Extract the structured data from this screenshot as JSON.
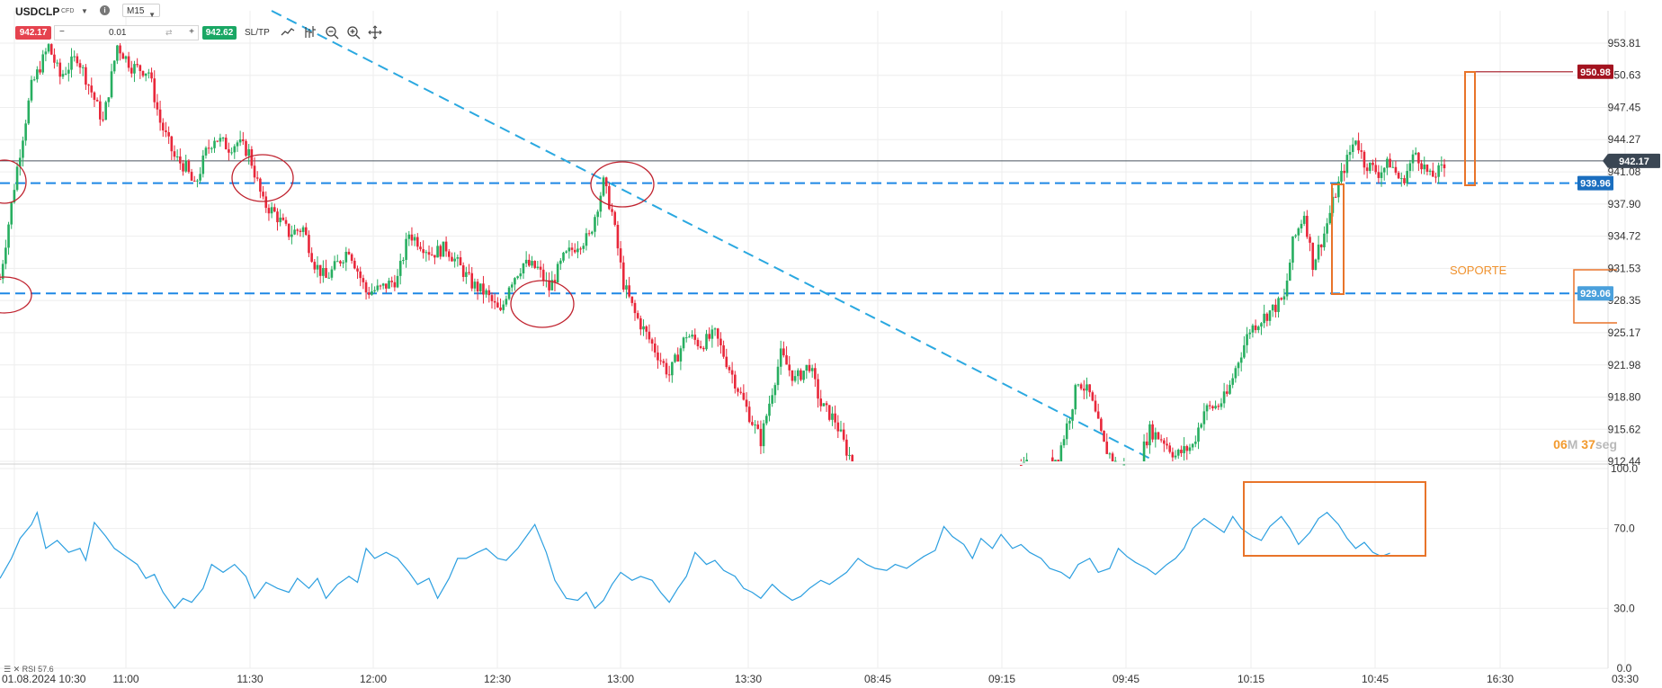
{
  "header": {
    "symbol": "USDCLP",
    "instrument_type": "CFD",
    "info_icon": "i",
    "timeframe": "M15",
    "sell_price": "942.17",
    "buy_price": "942.62",
    "quantity": "0.01",
    "minus": "−",
    "plus": "+",
    "swap_icon": "swap-icon",
    "sltp_label": "SL/TP",
    "tools": [
      "line-chart-icon",
      "indicators-icon",
      "zoom-out-icon",
      "zoom-in-icon",
      "crosshair-icon"
    ]
  },
  "indicator": {
    "rsi_label": "RSI 57.6"
  },
  "annotations": {
    "soporte_label": "SOPORTE",
    "countdown_minutes": "06",
    "countdown_minutes_unit": "M",
    "countdown_seconds": "37",
    "countdown_seconds_unit": "seg"
  },
  "colors": {
    "bull": "#27ae60",
    "bear": "#e8273a",
    "level": "#1e88e5",
    "trend": "#2aa8e0",
    "annotation_orange": "#e8742a",
    "circle_red": "#c0232f",
    "rsi": "#2c9fe0",
    "price_tag": "#3a4653",
    "target_tag": "#a3131f",
    "level_tag_dark": "#1a6ebf",
    "level_tag_light": "#4aa0dc"
  },
  "chart_data": {
    "type": "candlestick",
    "symbol": "USDCLP",
    "timeframe": "M15",
    "x_tick_labels": [
      "01.08.2024 10:30",
      "11:00",
      "11:30",
      "12:00",
      "12:30",
      "13:00",
      "13:30",
      "08:45",
      "09:15",
      "09:45",
      "10:15",
      "10:45",
      "16:30",
      "03:30"
    ],
    "y_tick_labels": [
      "953.81",
      "950.63",
      "947.45",
      "944.27",
      "941.08",
      "937.90",
      "934.72",
      "931.53",
      "928.35",
      "925.17",
      "921.98",
      "918.80",
      "915.62",
      "912.44"
    ],
    "ylim": [
      912.44,
      953.81
    ],
    "current_price": 942.17,
    "price_tags": [
      {
        "label": "942.17",
        "value": 942.17,
        "kind": "current"
      },
      {
        "label": "950.98",
        "value": 950.98,
        "kind": "target"
      },
      {
        "label": "939.96",
        "value": 939.96,
        "kind": "level"
      },
      {
        "label": "929.06",
        "value": 929.06,
        "kind": "support"
      }
    ],
    "horizontal_levels": [
      939.96,
      929.06
    ],
    "trendline": {
      "from": {
        "x_label": "11:30",
        "y": 958.2
      },
      "to": {
        "x_label": "09:45",
        "y": 912.0
      }
    },
    "price_path": [
      [
        0,
        930.5
      ],
      [
        6,
        941.5
      ],
      [
        11,
        949.5
      ],
      [
        17,
        953.5
      ],
      [
        21,
        950.5
      ],
      [
        27,
        952.5
      ],
      [
        32,
        949.0
      ],
      [
        36,
        946.0
      ],
      [
        41,
        953.6
      ],
      [
        46,
        951.5
      ],
      [
        52,
        951.0
      ],
      [
        56,
        946.0
      ],
      [
        61,
        942.5
      ],
      [
        65,
        941.5
      ],
      [
        68,
        939.5
      ],
      [
        72,
        943.0
      ],
      [
        75,
        944.5
      ],
      [
        80,
        943.5
      ],
      [
        83,
        944.0
      ],
      [
        87,
        943.0
      ],
      [
        92,
        938.0
      ],
      [
        96,
        937.0
      ],
      [
        101,
        935.0
      ],
      [
        106,
        935.5
      ],
      [
        110,
        932.0
      ],
      [
        114,
        930.5
      ],
      [
        118,
        932.0
      ],
      [
        122,
        933.5
      ],
      [
        128,
        929.2
      ],
      [
        133,
        929.5
      ],
      [
        139,
        930.5
      ],
      [
        143,
        935.0
      ],
      [
        147,
        934.0
      ],
      [
        151,
        933.0
      ],
      [
        156,
        933.6
      ],
      [
        160,
        932.0
      ],
      [
        165,
        930.0
      ],
      [
        170,
        929.0
      ],
      [
        175,
        927.0
      ],
      [
        178,
        930.0
      ],
      [
        183,
        932.0
      ],
      [
        188,
        931.5
      ],
      [
        192,
        929.5
      ],
      [
        197,
        932.5
      ],
      [
        202,
        934.0
      ],
      [
        206,
        934.6
      ],
      [
        211,
        940.0
      ],
      [
        214,
        937.0
      ],
      [
        218,
        930.0
      ],
      [
        222,
        927.0
      ],
      [
        228,
        924.0
      ],
      [
        234,
        921.0
      ],
      [
        240,
        925.0
      ],
      [
        245,
        924.0
      ],
      [
        250,
        925.0
      ],
      [
        256,
        921.0
      ],
      [
        262,
        917.0
      ],
      [
        266,
        914.5
      ],
      [
        270,
        919.5
      ],
      [
        273,
        923.0
      ],
      [
        278,
        920.5
      ],
      [
        283,
        922.0
      ],
      [
        287,
        918.0
      ],
      [
        292,
        916.5
      ],
      [
        296,
        913.5
      ],
      [
        300,
        911.5
      ],
      [
        306,
        911.0
      ],
      [
        312,
        911.0
      ],
      [
        318,
        911.0
      ],
      [
        324,
        911.0
      ],
      [
        330,
        911.0
      ],
      [
        336,
        911.0
      ],
      [
        342,
        911.0
      ],
      [
        348,
        911.0
      ],
      [
        354,
        911.0
      ],
      [
        359,
        912.0
      ],
      [
        364,
        911.5
      ],
      [
        370,
        913.0
      ],
      [
        374,
        917.0
      ],
      [
        377,
        920.5
      ],
      [
        381,
        919.0
      ],
      [
        386,
        914.0
      ],
      [
        390,
        912.2
      ],
      [
        397,
        911.5
      ],
      [
        402,
        915.5
      ],
      [
        407,
        914.5
      ],
      [
        411,
        913.0
      ],
      [
        417,
        914.0
      ],
      [
        421,
        917.5
      ],
      [
        426,
        918.0
      ],
      [
        429,
        919.0
      ],
      [
        433,
        922.5
      ],
      [
        437,
        925.5
      ],
      [
        441,
        926.5
      ],
      [
        445,
        927.5
      ],
      [
        449,
        928.5
      ],
      [
        452,
        934.0
      ],
      [
        456,
        937.0
      ],
      [
        459,
        932.0
      ],
      [
        463,
        935.0
      ],
      [
        467,
        939.0
      ],
      [
        470,
        941.5
      ],
      [
        474,
        944.5
      ],
      [
        477,
        942.0
      ],
      [
        482,
        941.0
      ],
      [
        486,
        942.0
      ],
      [
        490,
        940.0
      ],
      [
        495,
        943.0
      ],
      [
        500,
        940.5
      ],
      [
        505,
        941.5
      ]
    ],
    "rsi": {
      "label": "RSI 57.6",
      "value": 57.6,
      "ylim": [
        0,
        100
      ],
      "y_tick_labels": [
        "100.0",
        "70.0",
        "30.0",
        "0.0"
      ],
      "path": [
        [
          0,
          45
        ],
        [
          4,
          55
        ],
        [
          7,
          65
        ],
        [
          11,
          72
        ],
        [
          13,
          78
        ],
        [
          16,
          60
        ],
        [
          20,
          64
        ],
        [
          24,
          58
        ],
        [
          28,
          60
        ],
        [
          30,
          54
        ],
        [
          33,
          73
        ],
        [
          37,
          66
        ],
        [
          40,
          60
        ],
        [
          44,
          56
        ],
        [
          48,
          52
        ],
        [
          51,
          45
        ],
        [
          54,
          47
        ],
        [
          57,
          38
        ],
        [
          61,
          30
        ],
        [
          64,
          35
        ],
        [
          67,
          33
        ],
        [
          71,
          40
        ],
        [
          74,
          52
        ],
        [
          78,
          48
        ],
        [
          82,
          52
        ],
        [
          86,
          46
        ],
        [
          89,
          35
        ],
        [
          93,
          43
        ],
        [
          97,
          40
        ],
        [
          101,
          38
        ],
        [
          104,
          45
        ],
        [
          108,
          40
        ],
        [
          111,
          45
        ],
        [
          114,
          35
        ],
        [
          118,
          42
        ],
        [
          122,
          46
        ],
        [
          125,
          43
        ],
        [
          128,
          60
        ],
        [
          131,
          55
        ],
        [
          135,
          58
        ],
        [
          139,
          55
        ],
        [
          143,
          48
        ],
        [
          146,
          42
        ],
        [
          150,
          45
        ],
        [
          153,
          35
        ],
        [
          157,
          45
        ],
        [
          160,
          55
        ],
        [
          163,
          55
        ],
        [
          167,
          58
        ],
        [
          170,
          60
        ],
        [
          174,
          55
        ],
        [
          177,
          54
        ],
        [
          181,
          60
        ],
        [
          184,
          66
        ],
        [
          187,
          72
        ],
        [
          191,
          58
        ],
        [
          194,
          44
        ],
        [
          198,
          35
        ],
        [
          202,
          34
        ],
        [
          205,
          38
        ],
        [
          208,
          30
        ],
        [
          211,
          34
        ],
        [
          214,
          42
        ],
        [
          217,
          48
        ],
        [
          221,
          44
        ],
        [
          224,
          46
        ],
        [
          228,
          44
        ],
        [
          231,
          38
        ],
        [
          234,
          33
        ],
        [
          237,
          40
        ],
        [
          240,
          46
        ],
        [
          243,
          58
        ],
        [
          247,
          52
        ],
        [
          250,
          54
        ],
        [
          253,
          49
        ],
        [
          257,
          46
        ],
        [
          260,
          40
        ],
        [
          263,
          38
        ],
        [
          266,
          35
        ],
        [
          270,
          42
        ],
        [
          273,
          38
        ],
        [
          277,
          34
        ],
        [
          280,
          36
        ],
        [
          283,
          40
        ],
        [
          287,
          44
        ],
        [
          290,
          42
        ],
        [
          293,
          45
        ],
        [
          296,
          48
        ],
        [
          300,
          55
        ],
        [
          303,
          52
        ],
        [
          306,
          50
        ],
        [
          310,
          49
        ],
        [
          313,
          52
        ],
        [
          317,
          50
        ],
        [
          320,
          53
        ],
        [
          323,
          56
        ],
        [
          327,
          59
        ],
        [
          330,
          71
        ],
        [
          333,
          66
        ],
        [
          337,
          62
        ],
        [
          340,
          55
        ],
        [
          343,
          65
        ],
        [
          347,
          60
        ],
        [
          350,
          67
        ],
        [
          354,
          60
        ],
        [
          357,
          62
        ],
        [
          360,
          58
        ],
        [
          364,
          55
        ],
        [
          367,
          50
        ],
        [
          371,
          48
        ],
        [
          374,
          45
        ],
        [
          377,
          52
        ],
        [
          381,
          55
        ],
        [
          384,
          48
        ],
        [
          388,
          50
        ],
        [
          391,
          60
        ],
        [
          394,
          56
        ],
        [
          397,
          53
        ],
        [
          401,
          50
        ],
        [
          404,
          47
        ],
        [
          408,
          52
        ],
        [
          411,
          55
        ],
        [
          414,
          60
        ],
        [
          417,
          70
        ],
        [
          421,
          75
        ],
        [
          424,
          72
        ],
        [
          428,
          68
        ],
        [
          431,
          76
        ],
        [
          434,
          70
        ],
        [
          438,
          66
        ],
        [
          441,
          64
        ],
        [
          444,
          71
        ],
        [
          448,
          76
        ],
        [
          451,
          70
        ],
        [
          454,
          62
        ],
        [
          458,
          68
        ],
        [
          461,
          75
        ],
        [
          464,
          78
        ],
        [
          468,
          72
        ],
        [
          471,
          65
        ],
        [
          474,
          60
        ],
        [
          477,
          63
        ],
        [
          480,
          58
        ],
        [
          483,
          56
        ],
        [
          486,
          57.6
        ]
      ]
    }
  }
}
